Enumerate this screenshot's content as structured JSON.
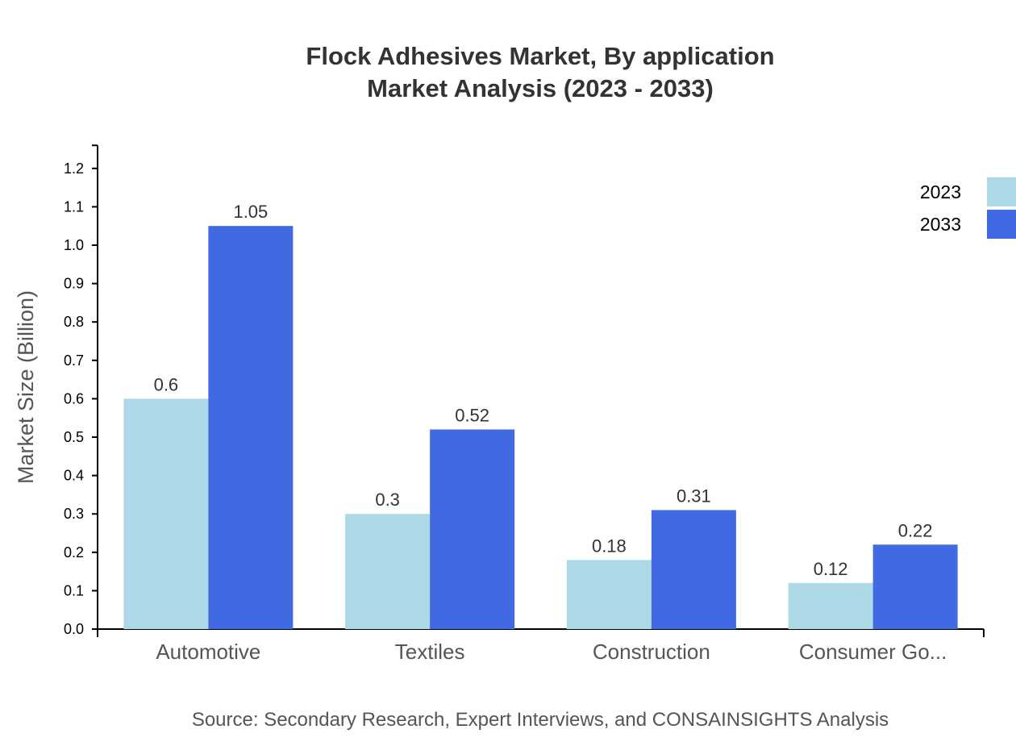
{
  "chart_data": {
    "type": "bar",
    "title": "Flock Adhesives Market, By application",
    "subtitle": "Market Analysis (2023 - 2033)",
    "xlabel": "",
    "ylabel": "Market Size (Billion)",
    "categories": [
      "Automotive",
      "Textiles",
      "Construction",
      "Consumer Go..."
    ],
    "series": [
      {
        "name": "2023",
        "values": [
          0.6,
          0.3,
          0.18,
          0.12
        ],
        "color": "#add8e6"
      },
      {
        "name": "2033",
        "values": [
          1.05,
          0.52,
          0.31,
          0.22
        ],
        "color": "#4169e1"
      }
    ],
    "data_labels": [
      [
        "0.6",
        "0.3",
        "0.18",
        "0.12"
      ],
      [
        "1.05",
        "0.52",
        "0.31",
        "0.22"
      ]
    ],
    "ylim": [
      0,
      1.26
    ],
    "yticks": [
      "0.0",
      "0.1",
      "0.2",
      "0.3",
      "0.4",
      "0.5",
      "0.6",
      "0.7",
      "0.8",
      "0.9",
      "1.0",
      "1.1",
      "1.2"
    ],
    "grid": false,
    "legend_position": "top-right",
    "source": "Source: Secondary Research, Expert Interviews, and CONSAINSIGHTS Analysis"
  }
}
